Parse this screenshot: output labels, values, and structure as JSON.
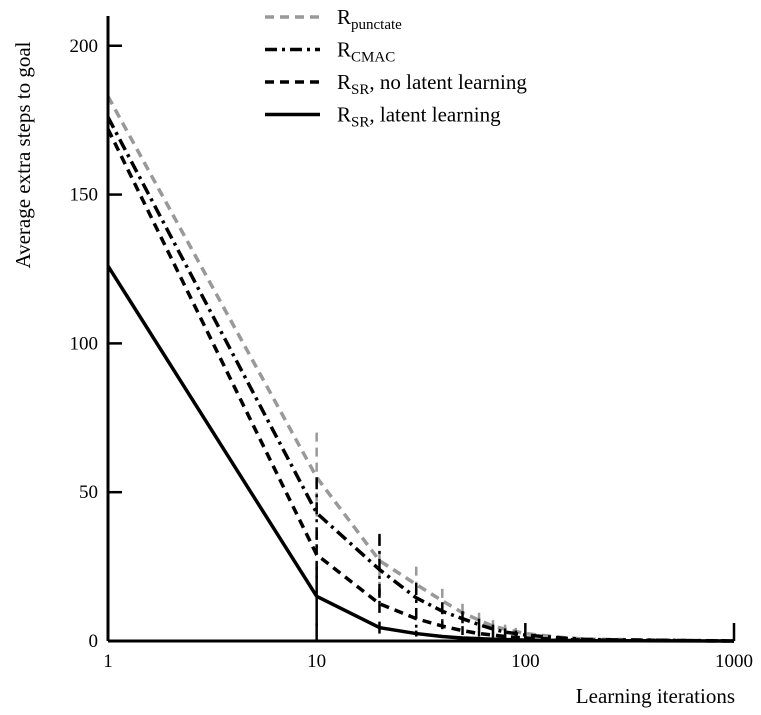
{
  "chart_data": {
    "type": "line",
    "title": "",
    "xlabel": "Learning iterations",
    "ylabel": "Average extra steps to goal",
    "xscale": "log",
    "xlim": [
      1,
      1000
    ],
    "ylim": [
      0,
      210
    ],
    "xticks": [
      1,
      10,
      100,
      1000
    ],
    "xtick_labels": [
      "1",
      "10",
      "100",
      "1000"
    ],
    "yticks": [
      0,
      50,
      100,
      150,
      200
    ],
    "ytick_labels": [
      "0",
      "50",
      "100",
      "150",
      "200"
    ],
    "grid": false,
    "legend_position": "top-center",
    "series": [
      {
        "name": "R_punctate",
        "legend_main": "R",
        "legend_sub": "punctate",
        "legend_suffix": "",
        "color": "#999999",
        "style": "dashed",
        "x": [
          1,
          10,
          20,
          30,
          40,
          50,
          60,
          70,
          80,
          90,
          100,
          150,
          200,
          1000
        ],
        "y": [
          183,
          55,
          27,
          19,
          13.5,
          9.5,
          7,
          5,
          4,
          3.2,
          2.5,
          1.2,
          0.6,
          0
        ],
        "err": [
          0,
          15,
          8,
          6,
          4,
          3,
          2.5,
          2,
          1.5,
          1.2,
          1,
          0.5,
          0.3,
          0
        ]
      },
      {
        "name": "R_CMAC",
        "legend_main": "R",
        "legend_sub": "CMAC",
        "legend_suffix": "",
        "color": "#000000",
        "style": "dashdot",
        "x": [
          1,
          10,
          20,
          30,
          40,
          50,
          60,
          70,
          80,
          90,
          100,
          150,
          200,
          1000
        ],
        "y": [
          176,
          43,
          24,
          14.5,
          10,
          7.5,
          5.5,
          4,
          3,
          2.5,
          2,
          1,
          0.5,
          0
        ],
        "err": [
          0,
          12,
          12,
          5,
          3,
          2.5,
          2,
          1.5,
          1.2,
          1,
          0.8,
          0.4,
          0.2,
          0
        ]
      },
      {
        "name": "R_SR, no latent learning",
        "legend_main": "R",
        "legend_sub": "SR",
        "legend_suffix": ", no latent learning",
        "color": "#000000",
        "style": "dashed",
        "x": [
          1,
          10,
          20,
          30,
          40,
          50,
          60,
          70,
          80,
          90,
          100,
          150,
          200,
          1000
        ],
        "y": [
          172,
          29,
          12.5,
          7.5,
          5,
          3.5,
          2.5,
          2,
          1.5,
          1.2,
          1,
          0.5,
          0.3,
          0
        ],
        "err": [
          0,
          8,
          5,
          3,
          2,
          1.5,
          1,
          0.8,
          0.6,
          0.5,
          0.4,
          0.2,
          0.1,
          0
        ]
      },
      {
        "name": "R_SR, latent learning",
        "legend_main": "R",
        "legend_sub": "SR",
        "legend_suffix": ", latent learning",
        "color": "#000000",
        "style": "solid",
        "x": [
          1,
          10,
          20,
          30,
          40,
          50,
          60,
          70,
          80,
          90,
          100,
          150,
          200,
          1000
        ],
        "y": [
          126,
          15,
          4.5,
          2.5,
          1.5,
          1,
          0.8,
          0.6,
          0.5,
          0.4,
          0.3,
          0.2,
          0.1,
          0
        ],
        "err": [
          0,
          10,
          2,
          1,
          0.5,
          0.4,
          0.3,
          0.2,
          0.2,
          0.1,
          0.1,
          0,
          0,
          0
        ]
      }
    ]
  }
}
